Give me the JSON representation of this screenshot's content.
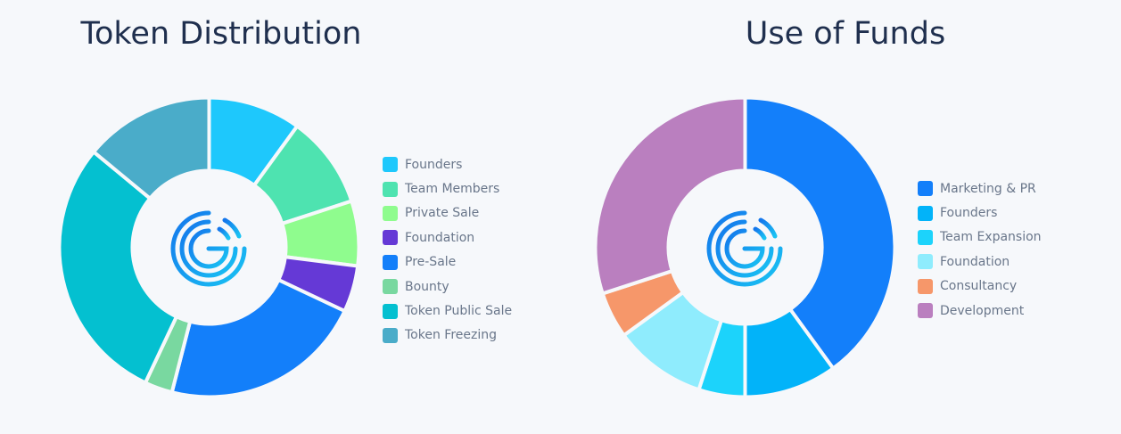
{
  "charts": [
    {
      "title": "Token Distribution",
      "legend_items": [
        {
          "label": "Founders",
          "color": "#1ec8fc"
        },
        {
          "label": "Team Members",
          "color": "#4ee3b0"
        },
        {
          "label": "Private Sale",
          "color": "#8ffc8e"
        },
        {
          "label": "Foundation",
          "color": "#6539d6"
        },
        {
          "label": "Pre-Sale",
          "color": "#137ffa"
        },
        {
          "label": "Bounty",
          "color": "#79d8a0"
        },
        {
          "label": "Token Public Sale",
          "color": "#04c0d0"
        },
        {
          "label": "Token Freezing",
          "color": "#4aacc9"
        }
      ]
    },
    {
      "title": "Use of Funds",
      "legend_items": [
        {
          "label": "Marketing & PR",
          "color": "#137ffa"
        },
        {
          "label": "Founders",
          "color": "#02b3f9"
        },
        {
          "label": "Team Expansion",
          "color": "#1cd3fb"
        },
        {
          "label": "Foundation",
          "color": "#8fecfd"
        },
        {
          "label": "Consultancy",
          "color": "#f6976a"
        },
        {
          "label": "Development",
          "color": "#ba7fbf"
        }
      ]
    }
  ],
  "chart_data": [
    {
      "type": "pie",
      "title": "Token Distribution",
      "categories": [
        "Founders",
        "Team Members",
        "Private Sale",
        "Foundation",
        "Pre-Sale",
        "Bounty",
        "Token Public Sale",
        "Token Freezing"
      ],
      "values": [
        10,
        10,
        7,
        5,
        22,
        3,
        29,
        14
      ],
      "colors": [
        "#1ec8fc",
        "#4ee3b0",
        "#8ffc8e",
        "#6539d6",
        "#137ffa",
        "#79d8a0",
        "#04c0d0",
        "#4aacc9"
      ],
      "legend": "right"
    },
    {
      "type": "pie",
      "title": "Use of Funds",
      "categories": [
        "Marketing & PR",
        "Founders",
        "Team Expansion",
        "Foundation",
        "Consultancy",
        "Development"
      ],
      "values": [
        40,
        10,
        5,
        10,
        5,
        30
      ],
      "colors": [
        "#137ffa",
        "#02b3f9",
        "#1cd3fb",
        "#8fecfd",
        "#f6976a",
        "#ba7fbf"
      ],
      "legend": "right"
    }
  ],
  "logo": {
    "name": "center-logo-icon",
    "color_start": "#1476ec",
    "color_end": "#19c3f3"
  }
}
